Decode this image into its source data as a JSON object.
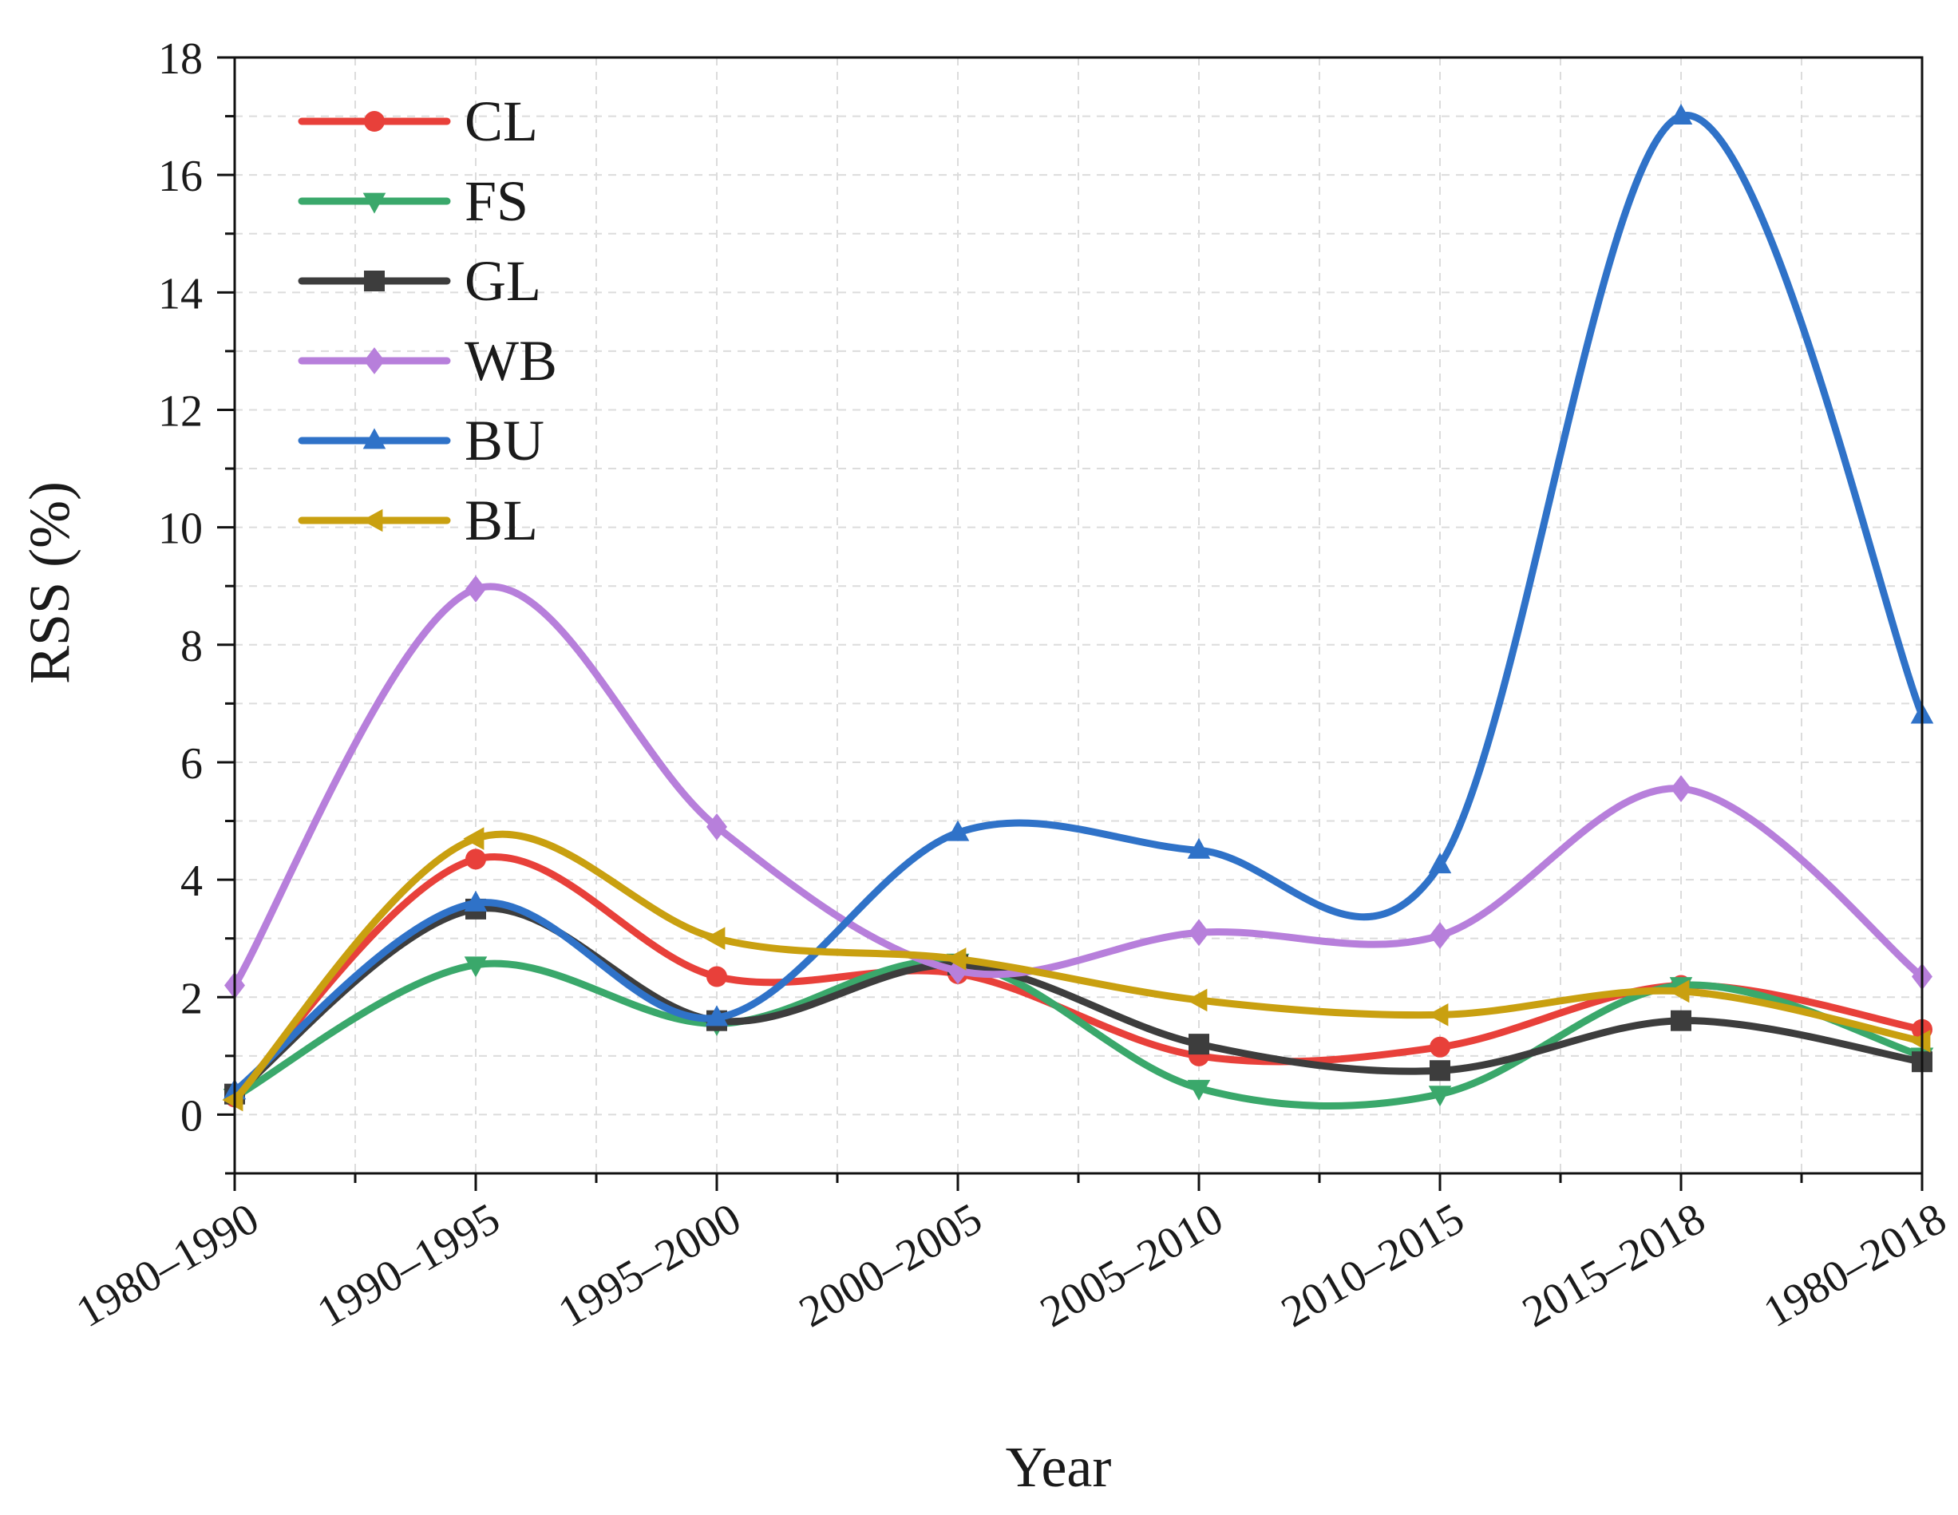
{
  "chart_data": {
    "type": "line",
    "title": "",
    "xlabel": "Year",
    "ylabel": "RSS (%)",
    "categories": [
      "1980–1990",
      "1990–1995",
      "1995–2000",
      "2000–2005",
      "2005–2010",
      "2010–2015",
      "2015–2018",
      "1980–2018"
    ],
    "ylim": [
      -1,
      18
    ],
    "yticks": [
      0,
      2,
      4,
      6,
      8,
      10,
      12,
      14,
      16,
      18
    ],
    "grid": true,
    "legend_position": "top-left",
    "series": [
      {
        "name": "CL",
        "color": "#e8403a",
        "marker": "circle",
        "values": [
          0.3,
          4.35,
          2.35,
          2.4,
          1.0,
          1.15,
          2.2,
          1.45
        ]
      },
      {
        "name": "FS",
        "color": "#3aa86b",
        "marker": "triangle-down",
        "values": [
          0.3,
          2.55,
          1.55,
          2.6,
          0.45,
          0.35,
          2.2,
          1.0
        ]
      },
      {
        "name": "GL",
        "color": "#3d3d3d",
        "marker": "square",
        "values": [
          0.35,
          3.5,
          1.6,
          2.55,
          1.2,
          0.75,
          1.6,
          0.9
        ]
      },
      {
        "name": "WB",
        "color": "#b77fdb",
        "marker": "diamond",
        "values": [
          2.2,
          8.95,
          4.9,
          2.45,
          3.1,
          3.05,
          5.55,
          2.35
        ]
      },
      {
        "name": "BU",
        "color": "#2f72c8",
        "marker": "triangle-up",
        "values": [
          0.4,
          3.6,
          1.65,
          4.8,
          4.5,
          4.25,
          17.0,
          6.8
        ]
      },
      {
        "name": "BL",
        "color": "#c9a010",
        "marker": "triangle-left",
        "values": [
          0.25,
          4.7,
          3.0,
          2.65,
          1.95,
          1.7,
          2.1,
          1.25
        ]
      }
    ]
  }
}
